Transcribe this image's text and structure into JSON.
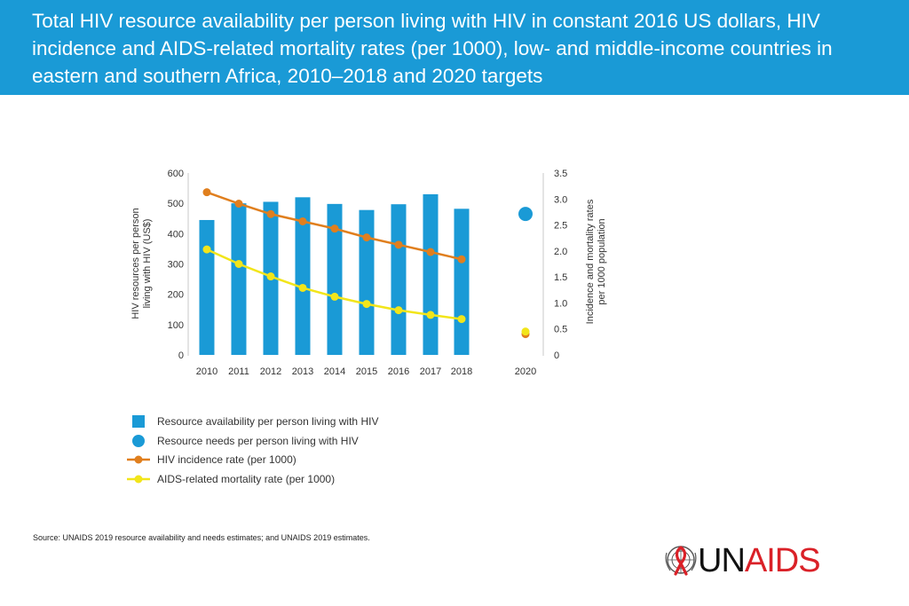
{
  "header": {
    "title": "Total HIV resource availability per person living with HIV in constant 2016 US dollars, HIV incidence and AIDS-related mortality rates (per 1000), low- and middle-income countries in eastern and southern Africa, 2010–2018 and 2020 targets"
  },
  "colors": {
    "header_bg": "#1a9ad6",
    "bar": "#1a9ad6",
    "incidence": "#e07f1e",
    "mortality": "#f2e51a",
    "brand_red": "#da2128"
  },
  "chart_data": {
    "type": "bar",
    "categories": [
      "2010",
      "2011",
      "2012",
      "2013",
      "2014",
      "2015",
      "2016",
      "2017",
      "2018",
      "2020"
    ],
    "left_axis": {
      "label_line1": "HIV resources per person",
      "label_line2": "living with HIV (US$)",
      "ylim": [
        0,
        600
      ],
      "ticks": [
        "0",
        "100",
        "200",
        "300",
        "400",
        "500",
        "600"
      ]
    },
    "right_axis": {
      "label_line1": "Incidence and mortality rates",
      "label_line2": "per 1000 population",
      "ylim": [
        0,
        3.5
      ],
      "ticks": [
        "0",
        "0.5",
        "1.0",
        "1.5",
        "2.0",
        "2.5",
        "3.0",
        "3.5"
      ]
    },
    "series": [
      {
        "name": "Resource availability per person living with HIV",
        "kind": "bar",
        "axis": "left",
        "values": [
          445,
          500,
          505,
          520,
          498,
          478,
          497,
          530,
          482,
          null
        ]
      },
      {
        "name": "Resource needs per person living with HIV",
        "kind": "point",
        "axis": "left",
        "values": [
          null,
          null,
          null,
          null,
          null,
          null,
          null,
          null,
          null,
          465
        ]
      },
      {
        "name": "HIV incidence rate (per 1000)",
        "kind": "line",
        "axis": "right",
        "values": [
          3.13,
          2.91,
          2.71,
          2.57,
          2.43,
          2.26,
          2.12,
          1.98,
          1.84,
          0.4
        ]
      },
      {
        "name": "AIDS-related mortality rate (per 1000)",
        "kind": "line",
        "axis": "right",
        "values": [
          2.03,
          1.75,
          1.51,
          1.29,
          1.12,
          0.98,
          0.86,
          0.77,
          0.69,
          0.45
        ]
      }
    ],
    "legend": [
      {
        "label": "Resource availability per person living with HIV",
        "marker": "square"
      },
      {
        "label": "Resource needs per person living with HIV",
        "marker": "circle"
      },
      {
        "label": "HIV incidence rate (per 1000)",
        "marker": "line-orange"
      },
      {
        "label": "AIDS-related mortality rate (per 1000)",
        "marker": "line-yellow"
      }
    ]
  },
  "source": {
    "prefix": "Source:",
    "text": "UNAIDS 2019 resource availability and needs estimates; and UNAIDS 2019 estimates."
  },
  "logo": {
    "text_un": "UN",
    "text_aids": "AIDS"
  }
}
